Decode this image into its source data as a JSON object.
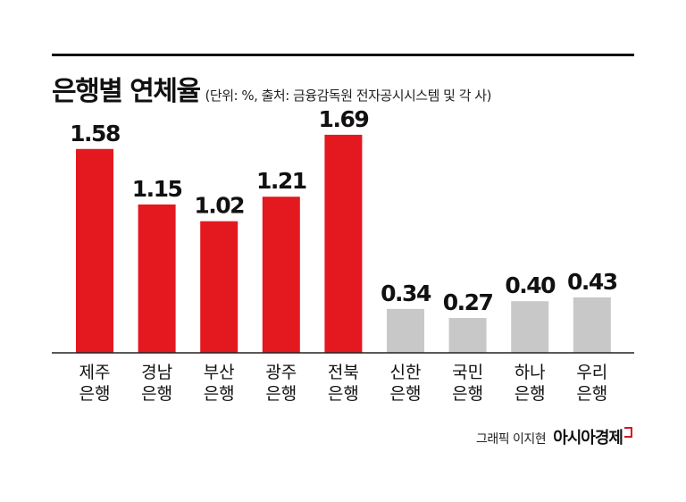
{
  "title": "은행별 연체율",
  "subtitle": "(단위: %, 출처: 금융감독원 전자공시시스템 및 각 사)",
  "credit": "그래픽 이지현",
  "brand": "아시아경제",
  "colors": {
    "highlight": "#e3191f",
    "muted": "#c8c8c8",
    "axis": "#222222",
    "text": "#111111"
  },
  "chart_data": {
    "type": "bar",
    "title": "은행별 연체율",
    "categories": [
      [
        "제주",
        "은행"
      ],
      [
        "경남",
        "은행"
      ],
      [
        "부산",
        "은행"
      ],
      [
        "광주",
        "은행"
      ],
      [
        "전북",
        "은행"
      ],
      [
        "신한",
        "은행"
      ],
      [
        "국민",
        "은행"
      ],
      [
        "하나",
        "은행"
      ],
      [
        "우리",
        "은행"
      ]
    ],
    "values": [
      1.58,
      1.15,
      1.02,
      1.21,
      1.69,
      0.34,
      0.27,
      0.4,
      0.43
    ],
    "value_labels": [
      "1.58",
      "1.15",
      "1.02",
      "1.21",
      "1.69",
      "0.34",
      "0.27",
      "0.40",
      "0.43"
    ],
    "bar_colors": [
      "#e3191f",
      "#e3191f",
      "#e3191f",
      "#e3191f",
      "#e3191f",
      "#c8c8c8",
      "#c8c8c8",
      "#c8c8c8",
      "#c8c8c8"
    ],
    "ylim": [
      0,
      1.8
    ],
    "grid": false,
    "legend": "none"
  }
}
